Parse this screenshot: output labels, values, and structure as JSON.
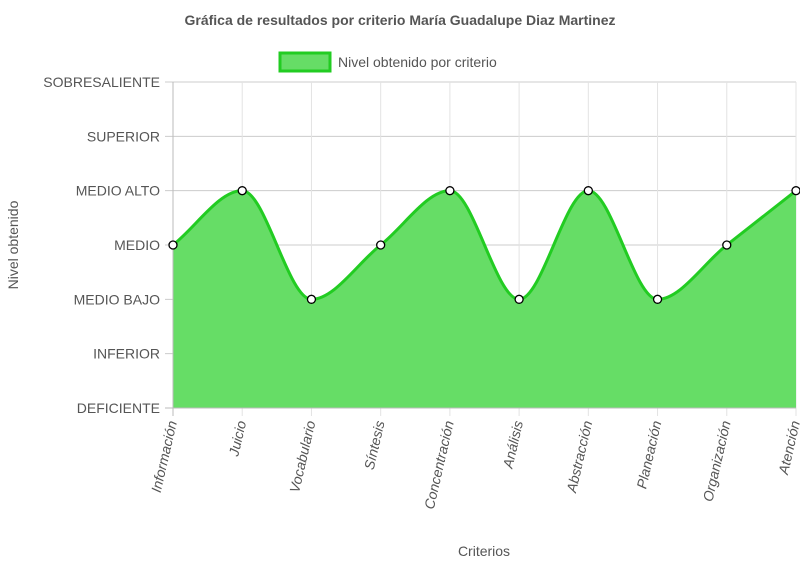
{
  "chart_data": {
    "type": "area",
    "title": "Gráfica de resultados por criterio María Guadalupe Diaz Martinez",
    "xlabel": "Criterios",
    "ylabel": "Nivel obtenido",
    "levels": [
      "DEFICIENTE",
      "INFERIOR",
      "MEDIO BAJO",
      "MEDIO",
      "MEDIO ALTO",
      "SUPERIOR",
      "SOBRESALIENTE"
    ],
    "categories": [
      "Información",
      "Juicio",
      "Vocabulario",
      "Síntesis",
      "Concentración",
      "Análisis",
      "Abstracción",
      "Planeación",
      "Organización",
      "Atención"
    ],
    "series": [
      {
        "name": "Nivel obtenido por criterio",
        "values": [
          "MEDIO",
          "MEDIO ALTO",
          "MEDIO BAJO",
          "MEDIO",
          "MEDIO ALTO",
          "MEDIO BAJO",
          "MEDIO ALTO",
          "MEDIO BAJO",
          "MEDIO",
          "MEDIO ALTO"
        ],
        "fill_color": "#66dd66",
        "line_color": "#22cc22"
      }
    ],
    "legend_position": "top",
    "grid": true
  }
}
